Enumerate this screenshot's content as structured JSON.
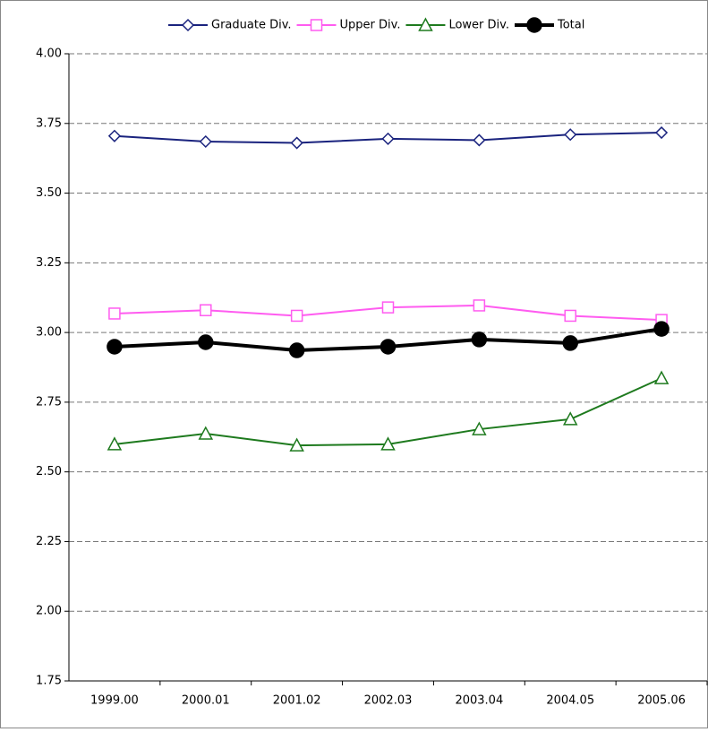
{
  "chart_data": {
    "type": "line",
    "categories": [
      "1999.00",
      "2000.01",
      "2001.02",
      "2002.03",
      "2003.04",
      "2004.05",
      "2005.06"
    ],
    "series": [
      {
        "name": "Graduate Div.",
        "color": "#1a237e",
        "marker": "diamond",
        "values": [
          3.705,
          3.685,
          3.68,
          3.695,
          3.69,
          3.71,
          3.717
        ]
      },
      {
        "name": "Upper Div.",
        "color": "#ff5cf0",
        "marker": "square",
        "values": [
          3.068,
          3.08,
          3.06,
          3.09,
          3.097,
          3.06,
          3.045
        ]
      },
      {
        "name": "Lower Div.",
        "color": "#1e7a1e",
        "marker": "triangle",
        "values": [
          2.599,
          2.637,
          2.595,
          2.599,
          2.653,
          2.689,
          2.836
        ]
      },
      {
        "name": "Total",
        "color": "#000000",
        "marker": "circle",
        "values": [
          2.949,
          2.965,
          2.936,
          2.949,
          2.975,
          2.962,
          3.013
        ]
      }
    ],
    "ylim": [
      1.75,
      4.0
    ],
    "yticks": [
      {
        "value": 1.75,
        "label": "1.75"
      },
      {
        "value": 2.0,
        "label": "2.00"
      },
      {
        "value": 2.25,
        "label": "2.25"
      },
      {
        "value": 2.5,
        "label": "2.50"
      },
      {
        "value": 2.75,
        "label": "2.75"
      },
      {
        "value": 3.0,
        "label": "3.00"
      },
      {
        "value": 3.25,
        "label": "3.25"
      },
      {
        "value": 3.5,
        "label": "3.50"
      },
      {
        "value": 3.75,
        "label": "3.75"
      },
      {
        "value": 4.0,
        "label": "4.00"
      }
    ],
    "grid": true,
    "legend": "top"
  }
}
